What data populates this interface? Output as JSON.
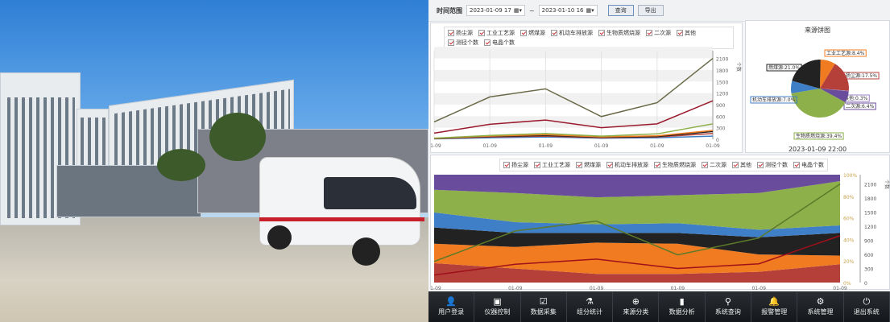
{
  "toolbar": {
    "time_range_label": "时间范围",
    "start": "2023-01-09 17",
    "separator": "~",
    "end": "2023-01-10 16",
    "query_label": "查询",
    "export_label": "导出"
  },
  "legend": [
    "扬尘源",
    "工业工艺源",
    "燃煤源",
    "机动车排放源",
    "生物质燃烧源",
    "二次源",
    "其他",
    "测径个数",
    "电晶个数"
  ],
  "colors": {
    "扬尘源": "#b5403a",
    "工业工艺源": "#f07b20",
    "燃煤源": "#222222",
    "机动车排放源": "#3f7fc7",
    "生物质燃烧源": "#8db04a",
    "二次源": "#6a4c9c",
    "其他": "#9a7fc0",
    "测径个数": "#6b6b4a",
    "电晶个数": "#9b1b2e"
  },
  "pie": {
    "title": "来源饼图",
    "timestamp": "2023-01-09 22:00"
  },
  "right_axis_label": "个数",
  "nav": [
    {
      "label": "用户登录",
      "icon": "user-icon",
      "glyph": "👤"
    },
    {
      "label": "仪器控制",
      "icon": "monitor-icon",
      "glyph": "▣"
    },
    {
      "label": "数据采集",
      "icon": "collect-icon",
      "glyph": "☑"
    },
    {
      "label": "组分统计",
      "icon": "flask-icon",
      "glyph": "⚗"
    },
    {
      "label": "来源分类",
      "icon": "target-icon",
      "glyph": "⊕"
    },
    {
      "label": "数据分析",
      "icon": "bar-chart-icon",
      "glyph": "▮"
    },
    {
      "label": "系统查询",
      "icon": "search-icon",
      "glyph": "⚲"
    },
    {
      "label": "报警管理",
      "icon": "bell-icon",
      "glyph": "🔔"
    },
    {
      "label": "系统管理",
      "icon": "gear-icon",
      "glyph": "⚙"
    },
    {
      "label": "退出系统",
      "icon": "exit-icon",
      "glyph": "⏻"
    }
  ],
  "chart_data": [
    {
      "type": "line",
      "x": [
        "01-09",
        "01-09",
        "01-09",
        "01-09",
        "01-09",
        "01-09"
      ],
      "ylim": [
        0,
        2300
      ],
      "yticks": [
        0,
        300,
        600,
        900,
        1200,
        1500,
        1800,
        2100
      ],
      "ylabel": "个数",
      "series": [
        {
          "name": "测径个数",
          "values": [
            450,
            1100,
            1310,
            590,
            950,
            2100
          ]
        },
        {
          "name": "电晶个数",
          "values": [
            160,
            390,
            500,
            300,
            400,
            1000
          ]
        },
        {
          "name": "生物质燃烧源",
          "values": [
            30,
            100,
            150,
            80,
            140,
            400
          ]
        },
        {
          "name": "工业工艺源",
          "values": [
            25,
            80,
            120,
            60,
            90,
            230
          ]
        },
        {
          "name": "燃煤源",
          "values": [
            20,
            70,
            100,
            50,
            70,
            200
          ]
        },
        {
          "name": "扬尘源",
          "values": [
            15,
            60,
            80,
            40,
            60,
            150
          ]
        },
        {
          "name": "机动车排放源",
          "values": [
            10,
            40,
            60,
            30,
            40,
            80
          ]
        }
      ]
    },
    {
      "type": "pie",
      "title": "来源饼图",
      "slices": [
        {
          "name": "工业工艺源",
          "value": 8.4
        },
        {
          "name": "扬尘源",
          "value": 17.5
        },
        {
          "name": "其他",
          "value": 0.3
        },
        {
          "name": "二次源",
          "value": 6.4
        },
        {
          "name": "生物质燃烧源",
          "value": 39.4
        },
        {
          "name": "机动车排放源",
          "value": 7.0
        },
        {
          "name": "燃煤源",
          "value": 21.0
        }
      ]
    },
    {
      "type": "area",
      "stacked_percent": true,
      "x": [
        "01-09",
        "01-09",
        "01-09",
        "01-09",
        "01-09",
        "01-09"
      ],
      "ylim_left": [
        0,
        100
      ],
      "yticks_left": [
        "0%",
        "20%",
        "40%",
        "60%",
        "80%",
        "100%"
      ],
      "yticks_right": [
        0,
        300,
        600,
        900,
        1200,
        1500,
        1800,
        2100
      ],
      "series": [
        {
          "name": "扬尘源",
          "values": [
            18,
            13,
            8,
            8,
            10,
            17
          ]
        },
        {
          "name": "工业工艺源",
          "values": [
            18,
            20,
            29,
            28,
            16,
            8
          ]
        },
        {
          "name": "燃煤源",
          "values": [
            15,
            13,
            9,
            10,
            16,
            21
          ]
        },
        {
          "name": "机动车排放源",
          "values": [
            14,
            10,
            8,
            9,
            7,
            7
          ]
        },
        {
          "name": "生物质燃烧源",
          "values": [
            21,
            27,
            25,
            26,
            34,
            41
          ]
        },
        {
          "name": "二次源",
          "values": [
            14,
            17,
            21,
            19,
            17,
            6
          ]
        }
      ],
      "lines": [
        {
          "name": "测径个数",
          "values": [
            450,
            1100,
            1310,
            590,
            950,
            2100
          ]
        },
        {
          "name": "电晶个数",
          "values": [
            160,
            390,
            500,
            300,
            400,
            1000
          ]
        }
      ]
    }
  ]
}
